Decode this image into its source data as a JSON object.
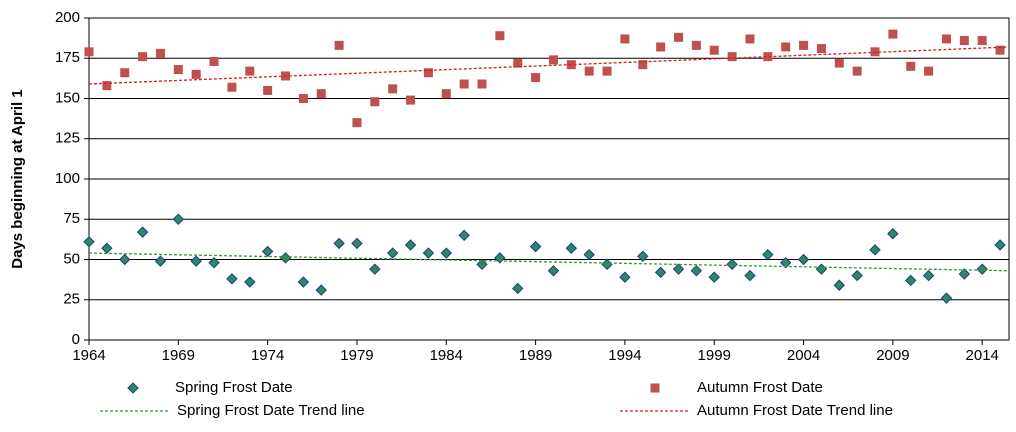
{
  "chart_data": {
    "type": "scatter",
    "y_label": "Days beginning at April 1",
    "x": [
      1964,
      1965,
      1966,
      1967,
      1968,
      1969,
      1970,
      1971,
      1972,
      1973,
      1974,
      1975,
      1976,
      1977,
      1978,
      1979,
      1980,
      1981,
      1982,
      1983,
      1984,
      1985,
      1986,
      1987,
      1988,
      1989,
      1990,
      1991,
      1992,
      1993,
      1994,
      1995,
      1996,
      1997,
      1998,
      1999,
      2000,
      2001,
      2002,
      2003,
      2004,
      2005,
      2006,
      2007,
      2008,
      2009,
      2010,
      2011,
      2012,
      2013,
      2014,
      2015
    ],
    "series": [
      {
        "name": "Spring Frost Date",
        "color": "#2e8b57",
        "marker": "diamond",
        "values": [
          61,
          57,
          50,
          67,
          49,
          75,
          49,
          48,
          38,
          36,
          55,
          51,
          36,
          31,
          60,
          60,
          44,
          54,
          59,
          54,
          54,
          65,
          47,
          51,
          32,
          58,
          43,
          57,
          53,
          47,
          39,
          52,
          42,
          44,
          43,
          39,
          47,
          40,
          53,
          48,
          50,
          44,
          34,
          40,
          56,
          66,
          37,
          40,
          26,
          41,
          44,
          59
        ]
      },
      {
        "name": "Autumn Frost  Date",
        "color": "#c0504d",
        "marker": "square",
        "values": [
          179,
          158,
          166,
          176,
          178,
          168,
          165,
          173,
          157,
          167,
          155,
          164,
          150,
          153,
          183,
          135,
          148,
          156,
          149,
          166,
          153,
          159,
          159,
          189,
          172,
          163,
          174,
          171,
          167,
          167,
          187,
          171,
          182,
          188,
          183,
          180,
          176,
          187,
          176,
          182,
          183,
          181,
          172,
          167,
          179,
          190,
          170,
          167,
          187,
          186,
          186,
          180
        ]
      },
      {
        "name": "Spring Frost Date Trend line",
        "color": "#339933",
        "marker": "dashed-line",
        "x": [
          1964,
          2015.5
        ],
        "values": [
          54,
          43
        ]
      },
      {
        "name": "Autumn Frost Date Trend line",
        "color": "#cc2222",
        "marker": "dashed-line",
        "x": [
          1964,
          2015.5
        ],
        "values": [
          159,
          182
        ]
      }
    ],
    "xlim": [
      1964,
      2015.5
    ],
    "xticks": [
      1964,
      1969,
      1974,
      1979,
      1984,
      1989,
      1994,
      1999,
      2004,
      2009,
      2014
    ],
    "ylim": [
      0,
      200
    ],
    "yticks": [
      0,
      25,
      50,
      75,
      100,
      125,
      150,
      175,
      200
    ],
    "grid": true
  }
}
